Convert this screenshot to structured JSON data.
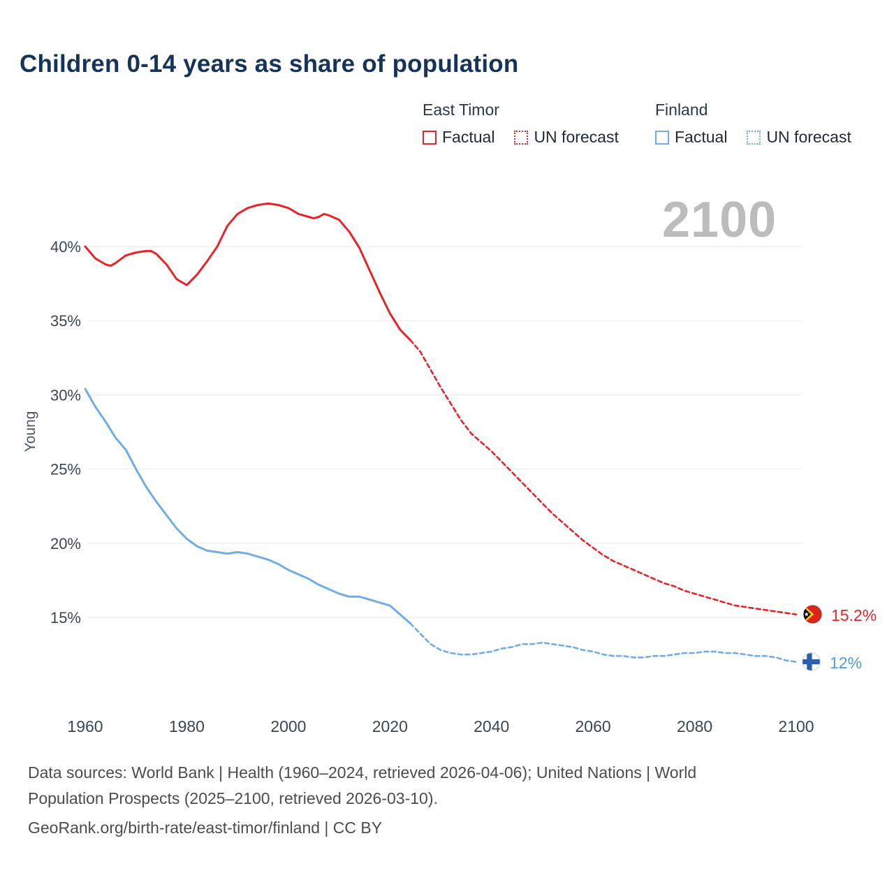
{
  "title": "Children 0-14 years as share of population",
  "watermark": "2100",
  "legend": {
    "groups": [
      {
        "name": "East Timor",
        "color": "#e8232a",
        "items": [
          {
            "label": "Factual",
            "style": "solid"
          },
          {
            "label": "UN forecast",
            "style": "dotted"
          }
        ]
      },
      {
        "name": "Finland",
        "color": "#71ade4",
        "items": [
          {
            "label": "Factual",
            "style": "solid"
          },
          {
            "label": "UN forecast",
            "style": "dotted"
          }
        ]
      }
    ]
  },
  "end_labels": {
    "east_timor": "15.2%",
    "finland": "12%"
  },
  "footer": {
    "line1": "Data sources: World Bank | Health (1960–2024, retrieved 2026-04-06); United Nations | World",
    "line2": "Population Prospects (2025–2100, retrieved 2026-03-10).",
    "line3": "GeoRank.org/birth-rate/east-timor/finland | CC BY"
  },
  "chart_data": {
    "type": "line",
    "title": "Children 0-14 years as share of population",
    "xlabel": "",
    "ylabel": "Young",
    "x_range": [
      1960,
      2100
    ],
    "y_range_shown": [
      11,
      43.5
    ],
    "grid": "horizontal",
    "legend_position": "top-right",
    "yticks": [
      15,
      20,
      25,
      30,
      35,
      40
    ],
    "ytick_labels": [
      "15%",
      "20%",
      "25%",
      "30%",
      "35%",
      "40%"
    ],
    "xticks": [
      1960,
      1980,
      2000,
      2020,
      2040,
      2060,
      2080,
      2100
    ],
    "xtick_labels": [
      "1960",
      "1980",
      "2000",
      "2020",
      "2040",
      "2060",
      "2080",
      "2100"
    ],
    "series": [
      {
        "name": "Finland Factual",
        "slug": "finland-factual",
        "color": "#71ade4",
        "line": "solid",
        "points": [
          [
            1960,
            30.4
          ],
          [
            1962,
            29.2
          ],
          [
            1964,
            28.2
          ],
          [
            1966,
            27.1
          ],
          [
            1968,
            26.3
          ],
          [
            1970,
            25.0
          ],
          [
            1972,
            23.8
          ],
          [
            1974,
            22.8
          ],
          [
            1976,
            21.9
          ],
          [
            1978,
            21.0
          ],
          [
            1980,
            20.3
          ],
          [
            1982,
            19.8
          ],
          [
            1984,
            19.5
          ],
          [
            1986,
            19.4
          ],
          [
            1988,
            19.3
          ],
          [
            1990,
            19.4
          ],
          [
            1992,
            19.3
          ],
          [
            1994,
            19.1
          ],
          [
            1996,
            18.9
          ],
          [
            1998,
            18.6
          ],
          [
            2000,
            18.2
          ],
          [
            2002,
            17.9
          ],
          [
            2004,
            17.6
          ],
          [
            2006,
            17.2
          ],
          [
            2008,
            16.9
          ],
          [
            2010,
            16.6
          ],
          [
            2012,
            16.4
          ],
          [
            2014,
            16.4
          ],
          [
            2016,
            16.2
          ],
          [
            2018,
            16.0
          ],
          [
            2020,
            15.8
          ],
          [
            2022,
            15.2
          ],
          [
            2024,
            14.6
          ]
        ]
      },
      {
        "name": "Finland UN forecast",
        "slug": "finland-forecast",
        "color": "#71ade4",
        "line": "dashed",
        "points": [
          [
            2024,
            14.6
          ],
          [
            2026,
            13.9
          ],
          [
            2028,
            13.2
          ],
          [
            2030,
            12.8
          ],
          [
            2032,
            12.6
          ],
          [
            2034,
            12.5
          ],
          [
            2036,
            12.5
          ],
          [
            2038,
            12.6
          ],
          [
            2040,
            12.7
          ],
          [
            2042,
            12.9
          ],
          [
            2044,
            13.0
          ],
          [
            2046,
            13.2
          ],
          [
            2048,
            13.2
          ],
          [
            2050,
            13.3
          ],
          [
            2052,
            13.2
          ],
          [
            2054,
            13.1
          ],
          [
            2056,
            13.0
          ],
          [
            2058,
            12.8
          ],
          [
            2060,
            12.7
          ],
          [
            2062,
            12.5
          ],
          [
            2064,
            12.4
          ],
          [
            2066,
            12.4
          ],
          [
            2068,
            12.3
          ],
          [
            2070,
            12.3
          ],
          [
            2072,
            12.4
          ],
          [
            2074,
            12.4
          ],
          [
            2076,
            12.5
          ],
          [
            2078,
            12.6
          ],
          [
            2080,
            12.6
          ],
          [
            2082,
            12.7
          ],
          [
            2084,
            12.7
          ],
          [
            2086,
            12.6
          ],
          [
            2088,
            12.6
          ],
          [
            2090,
            12.5
          ],
          [
            2092,
            12.4
          ],
          [
            2094,
            12.4
          ],
          [
            2096,
            12.3
          ],
          [
            2098,
            12.1
          ],
          [
            2100,
            12.0
          ]
        ]
      },
      {
        "name": "East Timor Factual",
        "slug": "east-timor-factual",
        "color": "#e8232a",
        "line": "solid",
        "points": [
          [
            1960,
            40.0
          ],
          [
            1962,
            39.2
          ],
          [
            1964,
            38.8
          ],
          [
            1965,
            38.7
          ],
          [
            1966,
            38.9
          ],
          [
            1968,
            39.4
          ],
          [
            1970,
            39.6
          ],
          [
            1972,
            39.7
          ],
          [
            1973,
            39.7
          ],
          [
            1974,
            39.5
          ],
          [
            1976,
            38.8
          ],
          [
            1978,
            37.8
          ],
          [
            1980,
            37.4
          ],
          [
            1982,
            38.1
          ],
          [
            1984,
            39.0
          ],
          [
            1986,
            40.0
          ],
          [
            1988,
            41.4
          ],
          [
            1990,
            42.2
          ],
          [
            1992,
            42.6
          ],
          [
            1994,
            42.8
          ],
          [
            1996,
            42.9
          ],
          [
            1998,
            42.8
          ],
          [
            2000,
            42.6
          ],
          [
            2002,
            42.2
          ],
          [
            2004,
            42.0
          ],
          [
            2005,
            41.9
          ],
          [
            2006,
            42.0
          ],
          [
            2007,
            42.2
          ],
          [
            2008,
            42.1
          ],
          [
            2010,
            41.8
          ],
          [
            2012,
            41.0
          ],
          [
            2014,
            39.9
          ],
          [
            2016,
            38.4
          ],
          [
            2018,
            36.9
          ],
          [
            2020,
            35.5
          ],
          [
            2022,
            34.4
          ],
          [
            2024,
            33.7
          ]
        ]
      },
      {
        "name": "East Timor UN forecast",
        "slug": "east-timor-forecast",
        "color": "#e8232a",
        "line": "dashed",
        "points": [
          [
            2024,
            33.7
          ],
          [
            2026,
            32.9
          ],
          [
            2028,
            31.7
          ],
          [
            2030,
            30.5
          ],
          [
            2032,
            29.4
          ],
          [
            2034,
            28.3
          ],
          [
            2036,
            27.4
          ],
          [
            2038,
            26.8
          ],
          [
            2040,
            26.2
          ],
          [
            2042,
            25.5
          ],
          [
            2044,
            24.8
          ],
          [
            2046,
            24.1
          ],
          [
            2048,
            23.4
          ],
          [
            2050,
            22.7
          ],
          [
            2052,
            22.0
          ],
          [
            2054,
            21.4
          ],
          [
            2056,
            20.8
          ],
          [
            2058,
            20.2
          ],
          [
            2060,
            19.7
          ],
          [
            2062,
            19.2
          ],
          [
            2064,
            18.8
          ],
          [
            2066,
            18.5
          ],
          [
            2068,
            18.2
          ],
          [
            2070,
            17.9
          ],
          [
            2072,
            17.6
          ],
          [
            2074,
            17.3
          ],
          [
            2076,
            17.1
          ],
          [
            2078,
            16.8
          ],
          [
            2080,
            16.6
          ],
          [
            2082,
            16.4
          ],
          [
            2084,
            16.2
          ],
          [
            2086,
            16.0
          ],
          [
            2088,
            15.8
          ],
          [
            2090,
            15.7
          ],
          [
            2092,
            15.6
          ],
          [
            2094,
            15.5
          ],
          [
            2096,
            15.4
          ],
          [
            2098,
            15.3
          ],
          [
            2100,
            15.2
          ]
        ]
      }
    ]
  }
}
